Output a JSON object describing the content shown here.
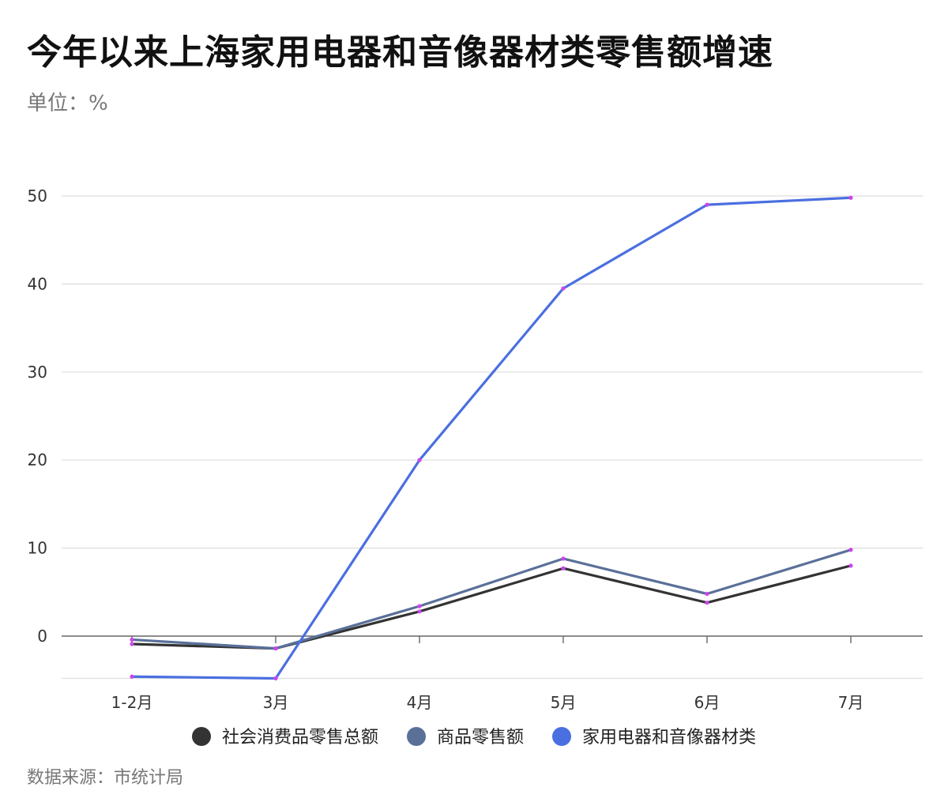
{
  "chart_data": {
    "type": "line",
    "title": "今年以来上海家用电器和音像器材类零售额增速",
    "subtitle": "单位：%",
    "source": "数据来源：市统计局",
    "categories": [
      "1-2月",
      "3月",
      "4月",
      "5月",
      "6月",
      "7月"
    ],
    "y_ticks": [
      0,
      10,
      20,
      30,
      40,
      50
    ],
    "ylim": [
      -4.8,
      55
    ],
    "grid": true,
    "legend_position": "bottom",
    "marker_color": "#cc44ee",
    "series": [
      {
        "name": "社会消费品零售总额",
        "color": "#333333",
        "values": [
          -0.9,
          -1.4,
          2.8,
          7.7,
          3.8,
          8.0
        ]
      },
      {
        "name": "商品零售额",
        "color": "#5a7099",
        "values": [
          -0.4,
          -1.4,
          3.4,
          8.8,
          4.8,
          9.8
        ]
      },
      {
        "name": "家用电器和音像器材类",
        "color": "#4a6fe0",
        "values": [
          -4.6,
          -4.8,
          20.0,
          39.5,
          49.0,
          49.8
        ]
      }
    ]
  }
}
